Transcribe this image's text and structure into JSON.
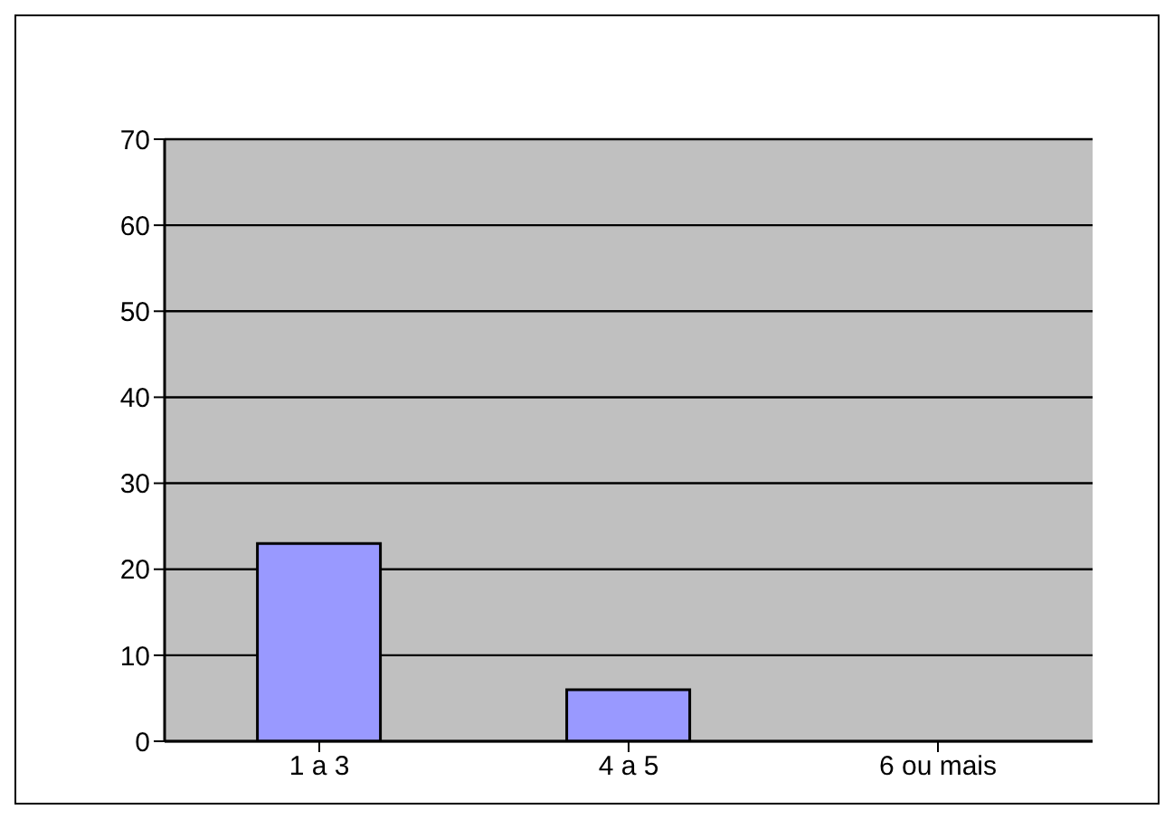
{
  "chart_data": {
    "type": "bar",
    "categories": [
      "1 a 3",
      "4 a 5",
      "6 ou mais"
    ],
    "values": [
      23,
      6,
      0
    ],
    "color": "#9999ff",
    "ylim": [
      0,
      70
    ],
    "yticks": [
      0,
      10,
      20,
      30,
      40,
      50,
      60,
      70
    ],
    "grid": "y"
  }
}
